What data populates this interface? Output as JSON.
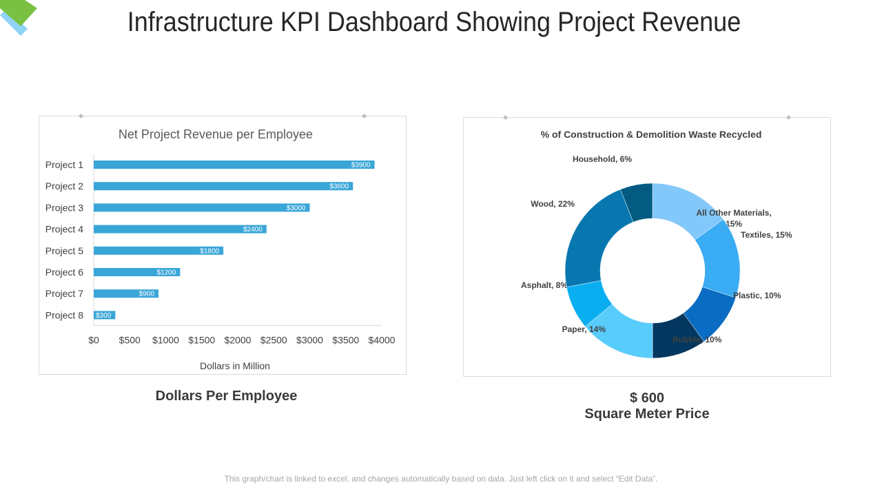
{
  "page": {
    "title": "Infrastructure KPI Dashboard Showing Project Revenue",
    "footer": "This graph/chart is linked to excel, and changes automatically based on data. Just left click on it and select “Edit Data”."
  },
  "captions": {
    "bar_caption": "Dollars Per Employee",
    "price_value": "$ 600",
    "price_label": "Square Meter Price"
  },
  "colors": {
    "logo_green": "#7ac143",
    "logo_blue": "#8fd3f5",
    "bar": "#3aa6d8"
  },
  "chart_data": [
    {
      "type": "bar",
      "orientation": "horizontal",
      "title": "Net Project Revenue per Employee",
      "xlabel": "Dollars in Million",
      "ylabel": "",
      "categories": [
        "Project 1",
        "Project 2",
        "Project 3",
        "Project 4",
        "Project 5",
        "Project 6",
        "Project 7",
        "Project 8"
      ],
      "values": [
        3900,
        3600,
        3000,
        2400,
        1800,
        1200,
        900,
        300
      ],
      "data_labels": [
        "$3900",
        "$3600",
        "$3000",
        "$2400",
        "$1800",
        "$1200",
        "$900",
        "$300"
      ],
      "xlim": [
        0,
        4000
      ],
      "x_ticks": [
        0,
        500,
        1000,
        1500,
        2000,
        2500,
        3000,
        3500,
        4000
      ],
      "x_tick_labels": [
        "$0",
        "$500",
        "$1000",
        "$1500",
        "$2000",
        "$2500",
        "$3000",
        "$3500",
        "$4000"
      ],
      "grid": false
    },
    {
      "type": "pie",
      "style": "donut",
      "title": "% of Construction & Demolition Waste Recycled",
      "slices": [
        {
          "label": "All Other Materials, 15%",
          "value": 15,
          "color": "#82c8fa"
        },
        {
          "label": "Textiles, 15%",
          "value": 15,
          "color": "#3aacf3"
        },
        {
          "label": "Plastic,  10%",
          "value": 10,
          "color": "#0a6cc2"
        },
        {
          "label": "Rubble, 10%",
          "value": 10,
          "color": "#03375f"
        },
        {
          "label": "Paper,  14%",
          "value": 14,
          "color": "#58ccfa"
        },
        {
          "label": "Asphalt,  8%",
          "value": 8,
          "color": "#08aef0"
        },
        {
          "label": "Wood, 22%",
          "value": 22,
          "color": "#0877b0"
        },
        {
          "label": "Household, 6%",
          "value": 6,
          "color": "#035b82"
        }
      ]
    }
  ]
}
